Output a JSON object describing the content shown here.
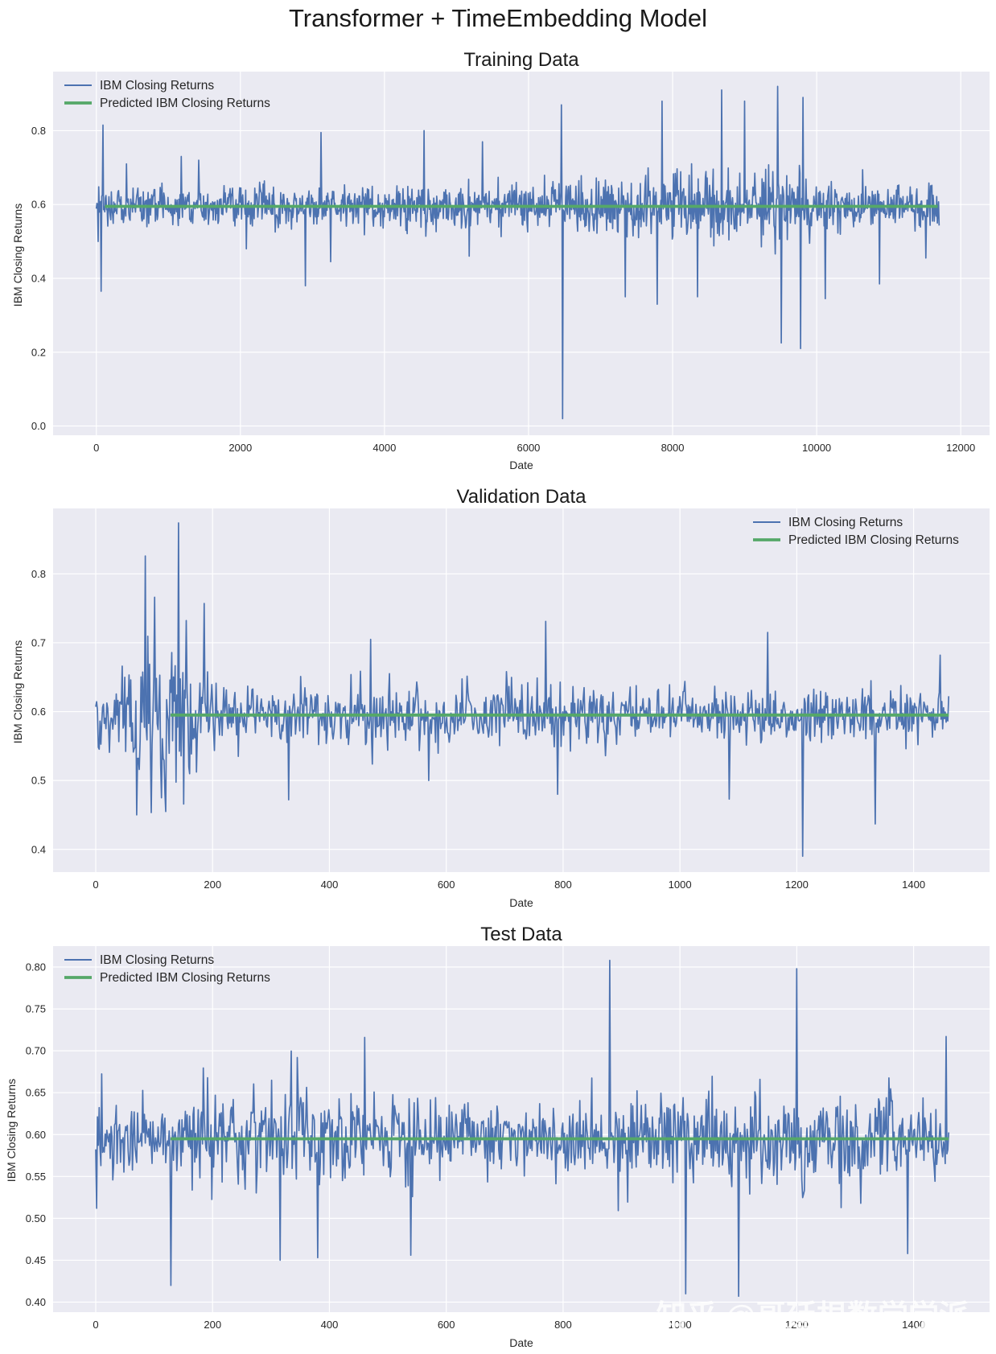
{
  "figure_title": "Transformer + TimeEmbedding Model",
  "watermark": "知乎 @哥廷根数学学派",
  "colors": {
    "actual": "#4c72b0",
    "predicted": "#55a868",
    "panel_bg": "#eaeaf2",
    "grid": "#ffffff"
  },
  "chart_data": [
    {
      "type": "line",
      "title": "Training Data",
      "xlabel": "Date",
      "ylabel": "IBM Closing Returns",
      "xlim": [
        -600,
        12400
      ],
      "ylim": [
        -0.025,
        0.96
      ],
      "xticks": [
        0,
        2000,
        4000,
        6000,
        8000,
        10000,
        12000
      ],
      "xtick_labels": [
        "0",
        "2000",
        "4000",
        "6000",
        "8000",
        "10000",
        "12000"
      ],
      "yticks": [
        0.0,
        0.2,
        0.4,
        0.6,
        0.8
      ],
      "ytick_labels": [
        "0.0",
        "0.2",
        "0.4",
        "0.6",
        "0.8"
      ],
      "legend_position": "top-left",
      "series": [
        {
          "name": "IBM Closing Returns",
          "kind": "noisy",
          "x_start": 0,
          "x_end": 11700,
          "n_points": 1400,
          "center": 0.595,
          "amplitude_profile": [
            [
              0,
              0.05
            ],
            [
              3000,
              0.045
            ],
            [
              4300,
              0.055
            ],
            [
              5800,
              0.05
            ],
            [
              7600,
              0.075
            ],
            [
              9500,
              0.085
            ],
            [
              10500,
              0.055
            ],
            [
              11700,
              0.05
            ]
          ],
          "spikes": [
            [
              25,
              0.5
            ],
            [
              70,
              0.365
            ],
            [
              95,
              0.815
            ],
            [
              420,
              0.71
            ],
            [
              1180,
              0.73
            ],
            [
              1420,
              0.72
            ],
            [
              2080,
              0.48
            ],
            [
              2900,
              0.38
            ],
            [
              3120,
              0.795
            ],
            [
              3250,
              0.445
            ],
            [
              4550,
              0.8
            ],
            [
              5180,
              0.46
            ],
            [
              5360,
              0.77
            ],
            [
              6460,
              0.87
            ],
            [
              6470,
              0.02
            ],
            [
              7340,
              0.35
            ],
            [
              7790,
              0.33
            ],
            [
              7850,
              0.88
            ],
            [
              8350,
              0.35
            ],
            [
              8680,
              0.91
            ],
            [
              9000,
              0.88
            ],
            [
              9460,
              0.92
            ],
            [
              9510,
              0.225
            ],
            [
              9780,
              0.21
            ],
            [
              9810,
              0.89
            ],
            [
              10120,
              0.345
            ],
            [
              10870,
              0.385
            ],
            [
              11520,
              0.455
            ]
          ]
        },
        {
          "name": "Predicted IBM Closing Returns",
          "kind": "flat",
          "x": [
            120,
            11680
          ],
          "values": [
            0.595,
            0.595
          ]
        }
      ]
    },
    {
      "type": "line",
      "title": "Validation Data",
      "xlabel": "Date",
      "ylabel": "IBM Closing Returns",
      "xlim": [
        -73,
        1530
      ],
      "ylim": [
        0.367,
        0.895
      ],
      "xticks": [
        0,
        200,
        400,
        600,
        800,
        1000,
        1200,
        1400
      ],
      "xtick_labels": [
        "0",
        "200",
        "400",
        "600",
        "800",
        "1000",
        "1200",
        "1400"
      ],
      "yticks": [
        0.4,
        0.5,
        0.6,
        0.7,
        0.8
      ],
      "ytick_labels": [
        "0.4",
        "0.5",
        "0.6",
        "0.7",
        "0.8"
      ],
      "legend_position": "top-right",
      "series": [
        {
          "name": "IBM Closing Returns",
          "kind": "noisy",
          "x_start": 0,
          "x_end": 1460,
          "n_points": 1000,
          "center": 0.595,
          "amplitude_profile": [
            [
              0,
              0.045
            ],
            [
              50,
              0.07
            ],
            [
              100,
              0.12
            ],
            [
              150,
              0.09
            ],
            [
              200,
              0.05
            ],
            [
              300,
              0.038
            ],
            [
              760,
              0.042
            ],
            [
              820,
              0.05
            ],
            [
              900,
              0.035
            ],
            [
              1460,
              0.035
            ]
          ],
          "spikes": [
            [
              85,
              0.826
            ],
            [
              142,
              0.874
            ],
            [
              185,
              0.757
            ],
            [
              70,
              0.45
            ],
            [
              120,
              0.455
            ],
            [
              330,
              0.472
            ],
            [
              470,
              0.705
            ],
            [
              570,
              0.5
            ],
            [
              770,
              0.731
            ],
            [
              790,
              0.48
            ],
            [
              1085,
              0.473
            ],
            [
              1150,
              0.715
            ],
            [
              1210,
              0.39
            ],
            [
              1335,
              0.437
            ],
            [
              1445,
              0.682
            ]
          ]
        },
        {
          "name": "Predicted IBM Closing Returns",
          "kind": "flat",
          "x": [
            128,
            1460
          ],
          "values": [
            0.595,
            0.595
          ]
        }
      ]
    },
    {
      "type": "line",
      "title": "Test Data",
      "xlabel": "Date",
      "ylabel": "IBM Closing Returns",
      "xlim": [
        -73,
        1530
      ],
      "ylim": [
        0.388,
        0.825
      ],
      "xticks": [
        0,
        200,
        400,
        600,
        800,
        1000,
        1200,
        1400
      ],
      "xtick_labels": [
        "0",
        "200",
        "400",
        "600",
        "800",
        "1000",
        "1200",
        "1400"
      ],
      "yticks": [
        0.4,
        0.45,
        0.5,
        0.55,
        0.6,
        0.65,
        0.7,
        0.75,
        0.8
      ],
      "ytick_labels": [
        "0.40",
        "0.45",
        "0.50",
        "0.55",
        "0.60",
        "0.65",
        "0.70",
        "0.75",
        "0.80"
      ],
      "legend_position": "top-left",
      "series": [
        {
          "name": "IBM Closing Returns",
          "kind": "noisy",
          "x_start": 0,
          "x_end": 1460,
          "n_points": 1000,
          "center": 0.595,
          "amplitude_profile": [
            [
              0,
              0.04
            ],
            [
              130,
              0.035
            ],
            [
              200,
              0.05
            ],
            [
              500,
              0.05
            ],
            [
              700,
              0.04
            ],
            [
              1000,
              0.045
            ],
            [
              1200,
              0.055
            ],
            [
              1460,
              0.045
            ]
          ],
          "spikes": [
            [
              2,
              0.512
            ],
            [
              128,
              0.42
            ],
            [
              315,
              0.45
            ],
            [
              345,
              0.692
            ],
            [
              380,
              0.453
            ],
            [
              460,
              0.716
            ],
            [
              540,
              0.456
            ],
            [
              880,
              0.808
            ],
            [
              1010,
              0.41
            ],
            [
              1100,
              0.407
            ],
            [
              1200,
              0.798
            ],
            [
              1390,
              0.458
            ],
            [
              1455,
              0.717
            ]
          ]
        },
        {
          "name": "Predicted IBM Closing Returns",
          "kind": "flat",
          "x": [
            128,
            1460
          ],
          "values": [
            0.595,
            0.595
          ]
        }
      ]
    }
  ]
}
